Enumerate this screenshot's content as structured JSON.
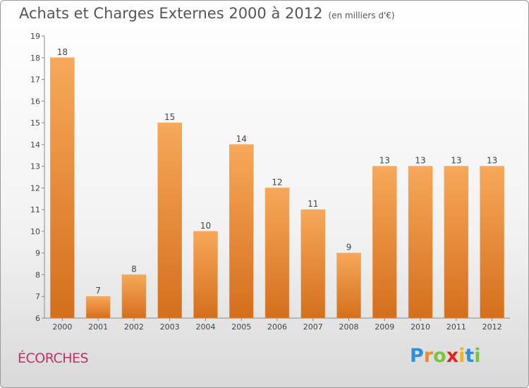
{
  "chart_data": {
    "type": "bar",
    "title": "Achats et Charges Externes 2000 à 2012",
    "subtitle": "(en milliers d'€)",
    "categories": [
      "2000",
      "2001",
      "2002",
      "2003",
      "2004",
      "2005",
      "2006",
      "2007",
      "2008",
      "2009",
      "2010",
      "2011",
      "2012"
    ],
    "values": [
      18,
      7,
      8,
      15,
      10,
      14,
      12,
      11,
      9,
      13,
      13,
      13,
      13
    ],
    "ylim": [
      6,
      19
    ],
    "yticks": [
      6,
      7,
      8,
      9,
      10,
      11,
      12,
      13,
      14,
      15,
      16,
      17,
      18,
      19
    ],
    "grid": false,
    "bar_color_top": "#f7a85a",
    "bar_color_bottom": "#d46f1c"
  },
  "commune": "ÉCORCHES",
  "logo": {
    "letters": [
      "P",
      "r",
      "o",
      "x",
      "i",
      "t",
      "i"
    ],
    "colors": [
      "#2f8fd8",
      "#f08a24",
      "#7cc243",
      "#e2261f",
      "#f0b41e",
      "#2f8fd8",
      "#7cc243"
    ]
  }
}
